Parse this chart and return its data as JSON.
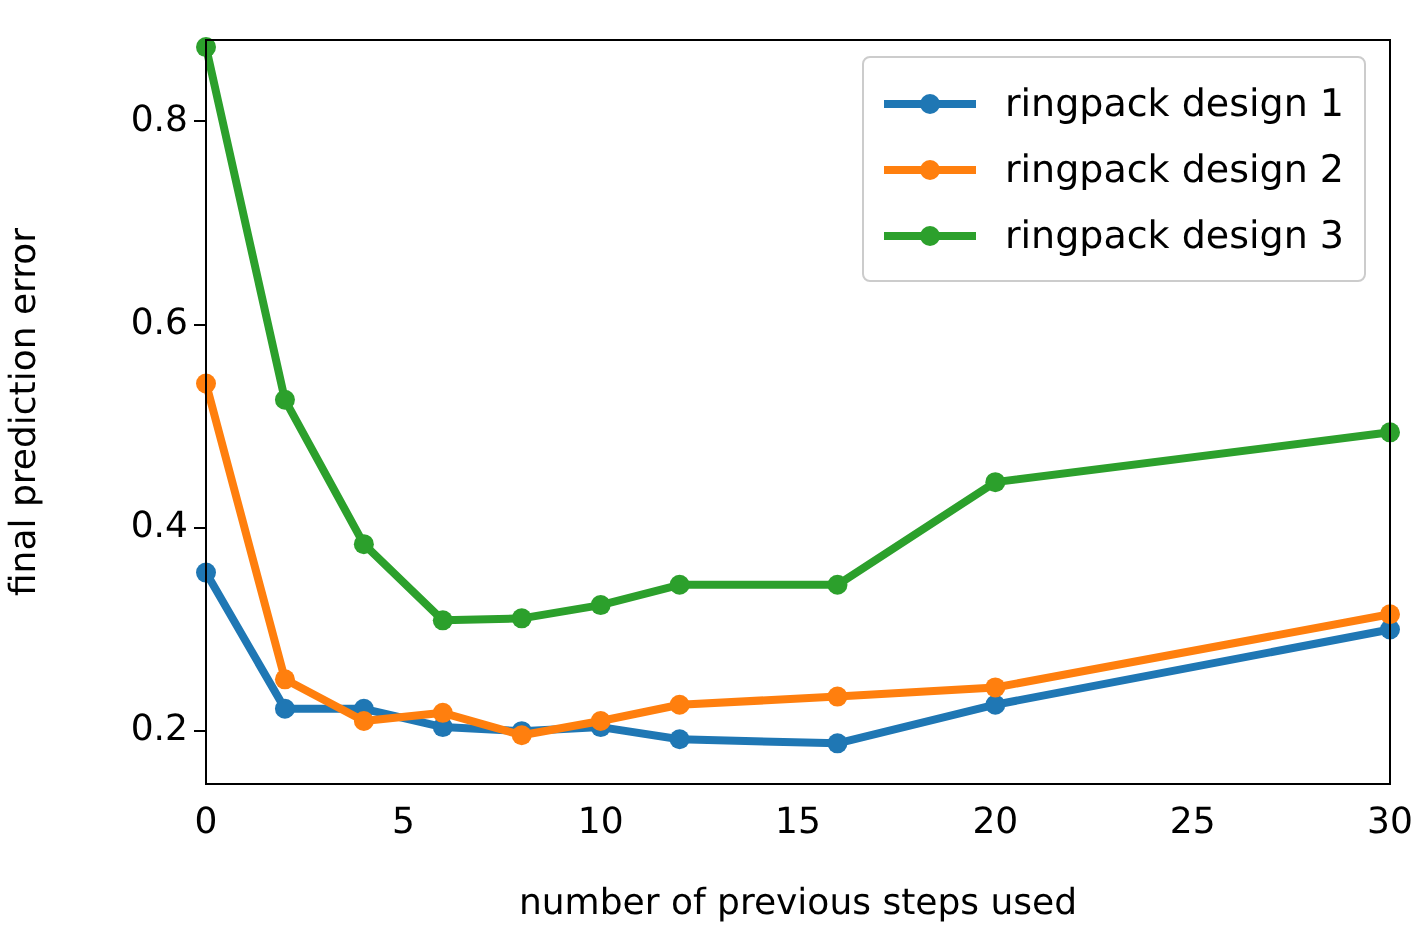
{
  "chart_data": {
    "type": "line",
    "xlabel": "number of previous steps used",
    "ylabel": "final prediction error",
    "x": [
      0,
      2,
      4,
      6,
      8,
      10,
      12,
      16,
      20,
      30
    ],
    "series": [
      {
        "name": "ringpack design 1",
        "color": "#1f77b4",
        "values": [
          0.356,
          0.222,
          0.222,
          0.204,
          0.2,
          0.204,
          0.192,
          0.188,
          0.226,
          0.3
        ]
      },
      {
        "name": "ringpack design 2",
        "color": "#ff7f0e",
        "values": [
          0.542,
          0.251,
          0.21,
          0.218,
          0.196,
          0.21,
          0.226,
          0.234,
          0.243,
          0.315
        ]
      },
      {
        "name": "ringpack design 3",
        "color": "#2ca02c",
        "values": [
          0.873,
          0.526,
          0.384,
          0.309,
          0.311,
          0.324,
          0.344,
          0.344,
          0.445,
          0.494
        ]
      }
    ],
    "xlim": [
      0,
      30
    ],
    "xticks": [
      0,
      5,
      10,
      15,
      20,
      25,
      30
    ],
    "ylim": [
      0.148,
      0.88
    ],
    "yticks": [
      0.2,
      0.4,
      0.6,
      0.8
    ],
    "grid": false,
    "legend": "top right",
    "marker": "circle",
    "line_style": "solid"
  }
}
